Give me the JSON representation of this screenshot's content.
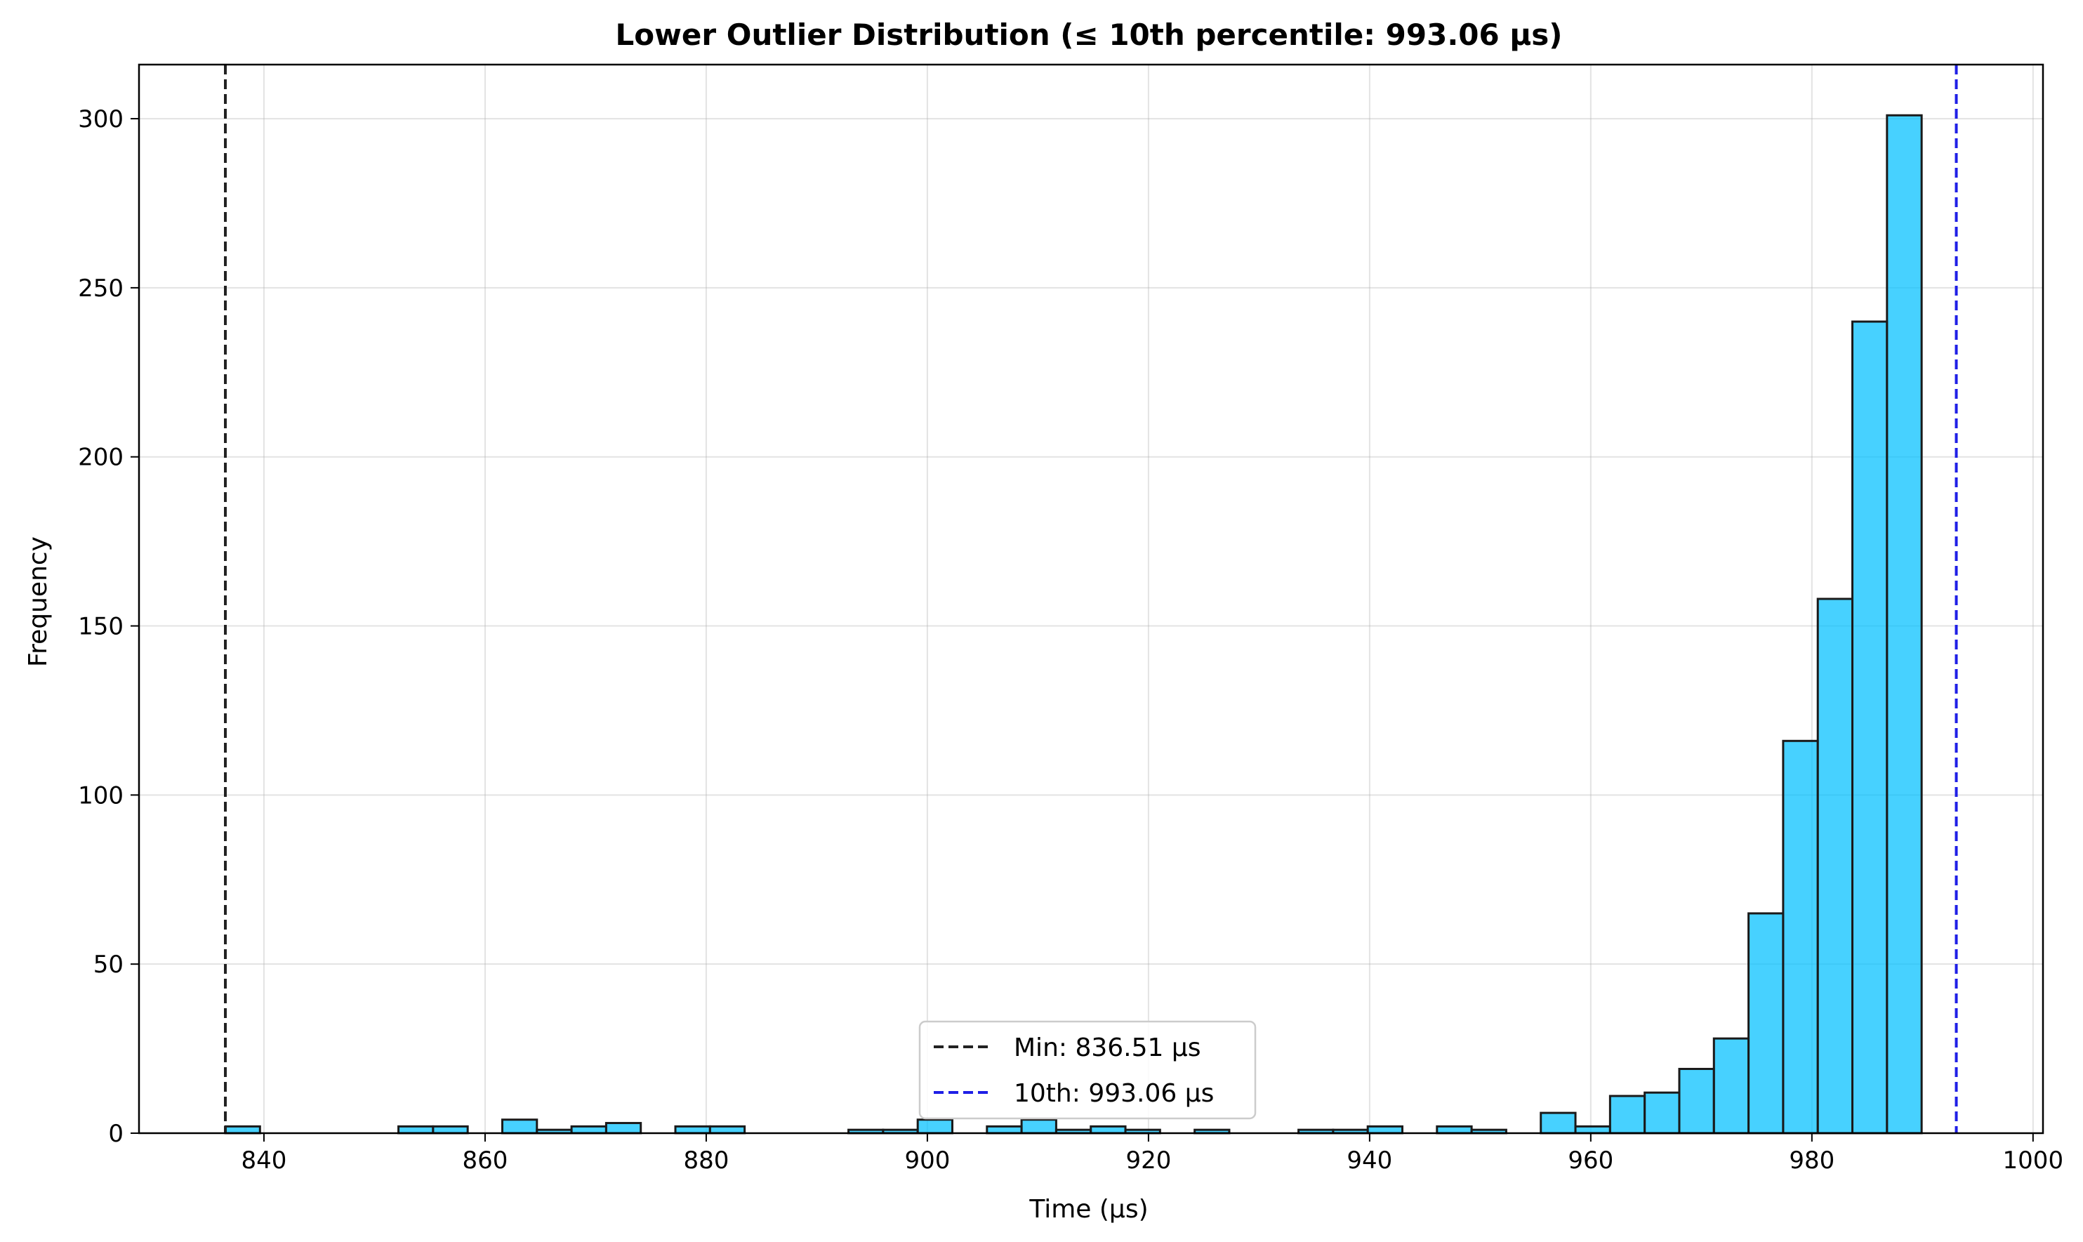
{
  "chart_data": {
    "type": "bar",
    "title": "Lower Outlier Distribution (≤ 10th percentile: 993.06 µs)",
    "xlabel": "Time (µs)",
    "ylabel": "Frequency",
    "xlim": [
      828.7,
      1000.9
    ],
    "ylim": [
      0,
      316
    ],
    "xticks": [
      840,
      860,
      880,
      900,
      920,
      940,
      960,
      980,
      1000
    ],
    "yticks": [
      0,
      50,
      100,
      150,
      200,
      250,
      300
    ],
    "grid": true,
    "legend_position": "lower-center",
    "bin_start": 836.51,
    "bin_width": 3.1309,
    "counts": [
      2,
      0,
      0,
      0,
      0,
      2,
      2,
      0,
      4,
      1,
      2,
      3,
      0,
      2,
      2,
      0,
      0,
      0,
      1,
      1,
      4,
      0,
      2,
      4,
      1,
      2,
      1,
      0,
      1,
      0,
      0,
      1,
      1,
      2,
      0,
      2,
      1,
      0,
      6,
      2,
      11,
      12,
      19,
      28,
      65,
      116,
      158,
      240,
      301,
      0
    ],
    "colors": {
      "bar": "#00bfff",
      "edge": "#1a1a1a",
      "min_line": "#222222",
      "p10_line": "#1f1fe6"
    },
    "reference_lines": [
      {
        "name": "Min: 836.51 µs",
        "x": 836.51,
        "color": "#222222"
      },
      {
        "name": "10th: 993.06 µs",
        "x": 993.06,
        "color": "#1f1fe6"
      }
    ]
  }
}
